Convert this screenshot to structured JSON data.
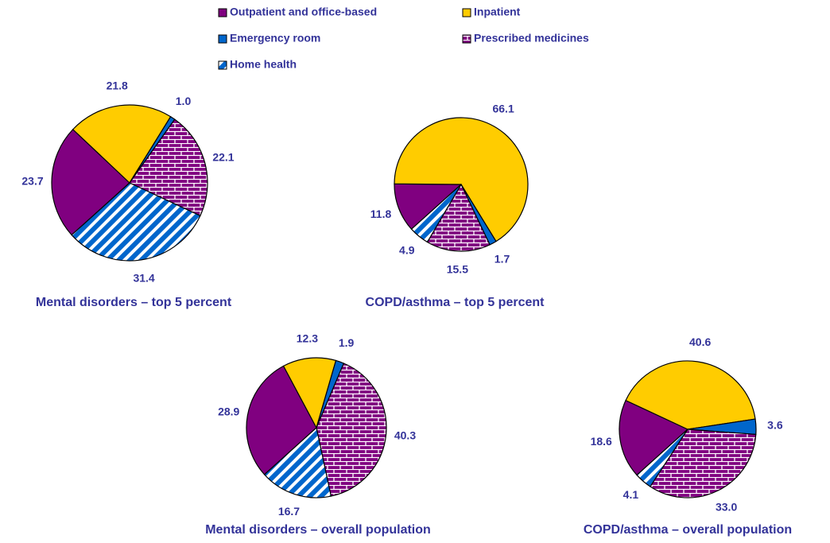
{
  "chart_data": [
    {
      "type": "pie",
      "title": "Mental disorders – top 5 percent",
      "categories": [
        "Outpatient and office-based",
        "Inpatient",
        "Emergency room",
        "Prescribed medicines",
        "Home health"
      ],
      "values": [
        23.7,
        21.8,
        1.0,
        22.1,
        31.4
      ],
      "value_labels": [
        "23.7",
        "21.8",
        "1.0",
        "22.1",
        "31.4"
      ],
      "colors": [
        "#800080",
        "#ffcc00",
        "#0066cc",
        "#800080",
        "#0066cc"
      ],
      "patterns": [
        "solid",
        "solid",
        "solid",
        "brick",
        "stripes"
      ]
    },
    {
      "type": "pie",
      "title": "COPD/asthma – top 5 percent",
      "categories": [
        "Outpatient and office-based",
        "Inpatient",
        "Emergency room",
        "Prescribed medicines",
        "Home health"
      ],
      "values": [
        11.8,
        66.1,
        1.7,
        15.5,
        4.9
      ],
      "value_labels": [
        "11.8",
        "66.1",
        "1.7",
        "15.5",
        "4.9"
      ],
      "colors": [
        "#800080",
        "#ffcc00",
        "#0066cc",
        "#800080",
        "#0066cc"
      ],
      "patterns": [
        "solid",
        "solid",
        "solid",
        "brick",
        "stripes"
      ]
    },
    {
      "type": "pie",
      "title": "Mental disorders – overall population",
      "categories": [
        "Outpatient and office-based",
        "Inpatient",
        "Emergency room",
        "Prescribed medicines",
        "Home health"
      ],
      "values": [
        28.9,
        12.3,
        1.9,
        40.3,
        16.7
      ],
      "value_labels": [
        "28.9",
        "12.3",
        "1.9",
        "40.3",
        "16.7"
      ],
      "colors": [
        "#800080",
        "#ffcc00",
        "#0066cc",
        "#800080",
        "#0066cc"
      ],
      "patterns": [
        "solid",
        "solid",
        "solid",
        "brick",
        "stripes"
      ]
    },
    {
      "type": "pie",
      "title": "COPD/asthma – overall population",
      "categories": [
        "Outpatient and office-based",
        "Inpatient",
        "Emergency room",
        "Prescribed medicines",
        "Home health"
      ],
      "values": [
        18.6,
        40.6,
        3.6,
        33.0,
        4.1
      ],
      "value_labels": [
        "18.6",
        "40.6",
        "3.6",
        "33.0",
        "4.1"
      ],
      "colors": [
        "#800080",
        "#ffcc00",
        "#0066cc",
        "#800080",
        "#0066cc"
      ],
      "patterns": [
        "solid",
        "solid",
        "solid",
        "brick",
        "stripes"
      ]
    }
  ]
}
